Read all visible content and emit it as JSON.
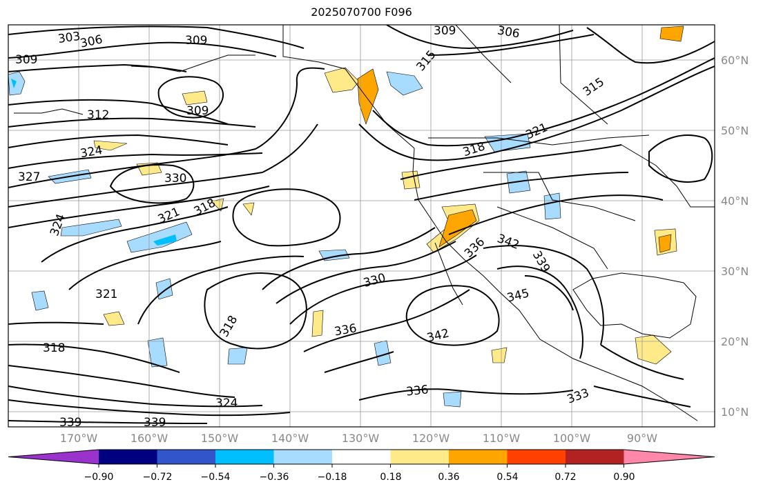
{
  "title": "2025070700 F096",
  "lat_labels": [
    "60°N",
    "50°N",
    "40°N",
    "30°N",
    "20°N",
    "10°N"
  ],
  "lon_labels": [
    "170°W",
    "160°W",
    "150°W",
    "140°W",
    "130°W",
    "120°W",
    "110°W",
    "100°W",
    "90°W"
  ],
  "contour_labels": [
    "303",
    "306",
    "309",
    "309",
    "306",
    "309",
    "315",
    "309",
    "312",
    "324",
    "327",
    "330",
    "321",
    "318",
    "315",
    "321",
    "318",
    "324",
    "321",
    "318",
    "330",
    "336",
    "342",
    "342",
    "336",
    "345",
    "339",
    "336",
    "333",
    "324",
    "339",
    "339",
    "318"
  ],
  "colorbar": {
    "ticks": [
      "−0.90",
      "−0.72",
      "−0.54",
      "−0.36",
      "−0.18",
      "0.18",
      "0.36",
      "0.54",
      "0.72",
      "0.90"
    ],
    "colors": [
      "#9933cc",
      "#000080",
      "#3355cc",
      "#00bfff",
      "#a8dcff",
      "#ffffff",
      "#ffea8a",
      "#ffa500",
      "#ff4000",
      "#b22222",
      "#ff88aa"
    ]
  },
  "colors": {
    "light_blue": "#a8dcff",
    "mid_blue": "#00bfff",
    "yellow": "#ffea8a",
    "orange": "#ffa500"
  }
}
